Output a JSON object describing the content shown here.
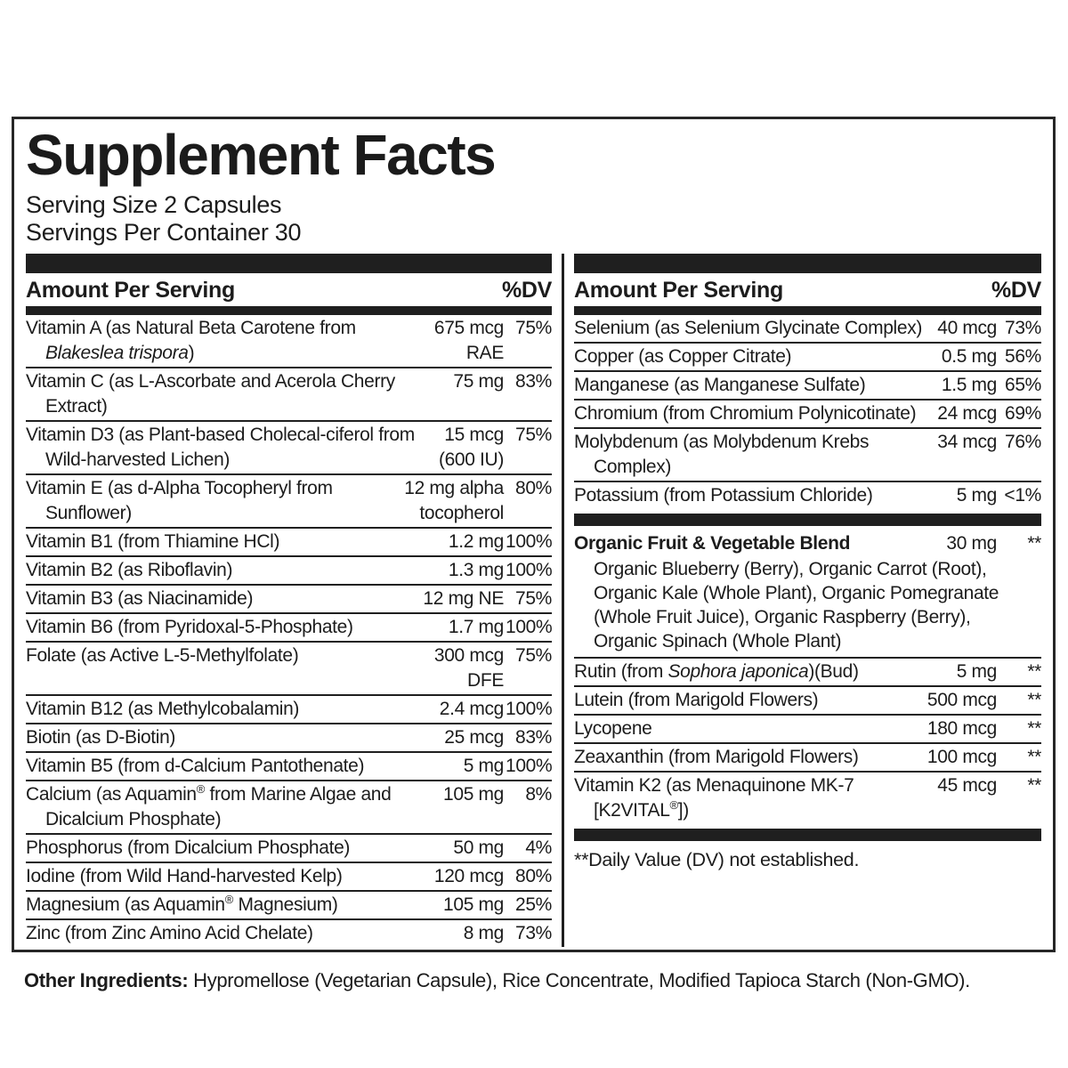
{
  "title": "Supplement Facts",
  "serving_size": "Serving Size 2 Capsules",
  "servings_per_container": "Servings Per Container 30",
  "column_header": {
    "amount_label": "Amount Per Serving",
    "dv_label": "%DV"
  },
  "left_column": {
    "rows": [
      {
        "name": "Vitamin A (as Natural Beta Carotene from *Blakeslea trispora*)",
        "amount": "675 mcg\nRAE",
        "dv": "75%"
      },
      {
        "name": "Vitamin C (as L-Ascorbate and Acerola Cherry Extract)",
        "amount": "75 mg",
        "dv": "83%"
      },
      {
        "name": "Vitamin D3 (as Plant-based Cholecal-ciferol from Wild-harvested Lichen)",
        "amount": "15 mcg\n(600 IU)",
        "dv": "75%"
      },
      {
        "name": "Vitamin E (as d-Alpha Tocopheryl from Sunflower)",
        "amount": "12 mg alpha\ntocopherol",
        "dv": "80%"
      },
      {
        "name": "Vitamin B1 (from Thiamine HCl)",
        "amount": "1.2 mg",
        "dv": "100%"
      },
      {
        "name": "Vitamin B2 (as Riboflavin)",
        "amount": "1.3 mg",
        "dv": "100%"
      },
      {
        "name": "Vitamin B3 (as Niacinamide)",
        "amount": "12 mg NE",
        "dv": "75%"
      },
      {
        "name": "Vitamin B6 (from Pyridoxal-5-Phosphate)",
        "amount": "1.7 mg",
        "dv": "100%"
      },
      {
        "name": "Folate (as Active L-5-Methylfolate)",
        "amount": "300 mcg\nDFE",
        "dv": "75%"
      },
      {
        "name": "Vitamin B12 (as Methylcobalamin)",
        "amount": "2.4 mcg",
        "dv": "100%"
      },
      {
        "name": "Biotin (as D-Biotin)",
        "amount": "25 mcg",
        "dv": "83%"
      },
      {
        "name": "Vitamin B5 (from d-Calcium Pantothenate)",
        "amount": "5 mg",
        "dv": "100%"
      },
      {
        "name": "Calcium (as Aquamin® from Marine Algae and Dicalcium Phosphate)",
        "amount": "105 mg",
        "dv": "8%"
      },
      {
        "name": "Phosphorus (from Dicalcium Phosphate)",
        "amount": "50 mg",
        "dv": "4%"
      },
      {
        "name": "Iodine (from Wild Hand-harvested Kelp)",
        "amount": "120 mcg",
        "dv": "80%"
      },
      {
        "name": "Magnesium (as Aquamin® Magnesium)",
        "amount": "105 mg",
        "dv": "25%"
      },
      {
        "name": "Zinc (from Zinc Amino Acid Chelate)",
        "amount": "8 mg",
        "dv": "73%"
      }
    ]
  },
  "right_column": {
    "mineral_rows": [
      {
        "name": "Selenium (as Selenium Glycinate Complex)",
        "amount": "40 mcg",
        "dv": "73%"
      },
      {
        "name": "Copper (as Copper Citrate)",
        "amount": "0.5 mg",
        "dv": "56%"
      },
      {
        "name": "Manganese (as Manganese Sulfate)",
        "amount": "1.5 mg",
        "dv": "65%"
      },
      {
        "name": "Chromium (from Chromium Polynicotinate)",
        "amount": "24 mcg",
        "dv": "69%"
      },
      {
        "name": "Molybdenum (as Molybdenum Krebs Complex)",
        "amount": "34 mcg",
        "dv": "76%"
      },
      {
        "name": "Potassium (from Potassium Chloride)",
        "amount": "5 mg",
        "dv": "<1%"
      }
    ],
    "blend": {
      "name": "Organic Fruit & Vegetable Blend",
      "amount": "30 mg",
      "dv": "**",
      "ingredients": "Organic Blueberry (Berry), Organic Carrot (Root), Organic Kale (Whole Plant), Organic Pomegranate (Whole Fruit Juice), Organic Raspberry (Berry), Organic Spinach (Whole Plant)"
    },
    "botanical_rows": [
      {
        "name": "Rutin (from *Sophora japonica*)(Bud)",
        "amount": "5 mg",
        "dv": "**"
      },
      {
        "name": "Lutein (from Marigold Flowers)",
        "amount": "500 mcg",
        "dv": "**"
      },
      {
        "name": "Lycopene",
        "amount": "180 mcg",
        "dv": "**"
      },
      {
        "name": "Zeaxanthin (from Marigold Flowers)",
        "amount": "100 mcg",
        "dv": "**"
      },
      {
        "name": "Vitamin K2 (as Menaquinone MK-7 [K2VITAL®])",
        "amount": "45 mcg",
        "dv": "**"
      }
    ],
    "footnote": "**Daily Value (DV) not established."
  },
  "other_ingredients": {
    "label": "Other Ingredients:",
    "text": " Hypromellose (Vegetarian Capsule), Rice Concentrate, Modified Tapioca Starch (Non-GMO)."
  },
  "colors": {
    "ink": "#1c1c1c",
    "bar": "#1f1f1f",
    "background": "#ffffff"
  }
}
